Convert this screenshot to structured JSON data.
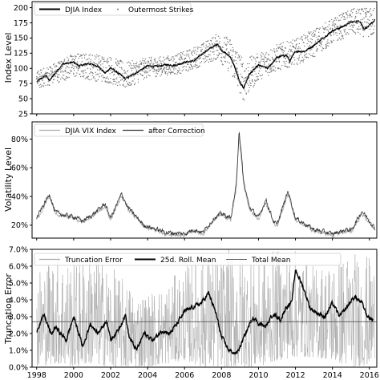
{
  "chart_data": [
    {
      "type": "line",
      "ylabel": "Index Level",
      "ylim": [
        25,
        210
      ],
      "yticks": [
        "25",
        "50",
        "75",
        "100",
        "125",
        "150",
        "175",
        "200"
      ],
      "ytick_values": [
        25,
        50,
        75,
        100,
        125,
        150,
        175,
        200
      ],
      "xlim": [
        1997.75,
        2016.4
      ],
      "legend": {
        "position": "top-left",
        "entries": [
          "DJIA Index",
          "Outermost Strikes"
        ]
      },
      "series": [
        {
          "name": "DJIA Index",
          "color": "#000000",
          "x": [
            1998.0,
            1998.5,
            1998.7,
            1999.0,
            1999.4,
            2000.0,
            2000.3,
            2000.8,
            2001.3,
            2001.7,
            2002.0,
            2002.5,
            2002.8,
            2003.0,
            2003.5,
            2004.0,
            2004.5,
            2005.0,
            2005.5,
            2006.0,
            2006.5,
            2007.0,
            2007.5,
            2007.8,
            2008.0,
            2008.5,
            2008.8,
            2009.0,
            2009.2,
            2009.5,
            2010.0,
            2010.5,
            2011.0,
            2011.5,
            2011.7,
            2012.0,
            2012.5,
            2013.0,
            2013.5,
            2014.0,
            2014.5,
            2015.0,
            2015.5,
            2015.7,
            2016.0,
            2016.3
          ],
          "y": [
            78,
            88,
            80,
            92,
            107,
            110,
            104,
            108,
            104,
            92,
            101,
            90,
            83,
            86,
            95,
            104,
            103,
            106,
            105,
            110,
            112,
            125,
            135,
            140,
            130,
            118,
            95,
            75,
            68,
            90,
            105,
            100,
            118,
            122,
            112,
            128,
            128,
            138,
            150,
            162,
            168,
            176,
            178,
            165,
            170,
            180
          ]
        },
        {
          "name": "Outermost Strikes",
          "color": "#777777",
          "style": "dotted band",
          "x": [
            1998.0,
            1999.0,
            2000.0,
            2001.0,
            2002.0,
            2002.8,
            2004.0,
            2005.0,
            2006.0,
            2007.0,
            2007.8,
            2008.5,
            2009.2,
            2010.0,
            2011.0,
            2012.0,
            2013.0,
            2014.0,
            2015.0,
            2016.3
          ],
          "y_low": [
            65,
            75,
            85,
            80,
            75,
            65,
            85,
            88,
            92,
            105,
            115,
            90,
            45,
            80,
            95,
            105,
            118,
            140,
            155,
            150
          ],
          "y_high": [
            95,
            110,
            125,
            125,
            120,
            110,
            118,
            120,
            128,
            142,
            158,
            150,
            115,
            125,
            140,
            148,
            165,
            182,
            198,
            200
          ]
        }
      ]
    },
    {
      "type": "line",
      "ylabel": "Volatility Level",
      "ylim": [
        0.11,
        0.92
      ],
      "yticks": [
        "20%",
        "40%",
        "60%",
        "80%"
      ],
      "ytick_values": [
        0.2,
        0.4,
        0.6,
        0.8
      ],
      "xlim": [
        1997.75,
        2016.4
      ],
      "legend": {
        "position": "top-left",
        "entries": [
          "DJIA VIX Index",
          "after Correction"
        ]
      },
      "series": [
        {
          "name": "DJIA VIX Index",
          "color": "#aaaaaa",
          "x": [
            1998.0,
            1998.7,
            1999.0,
            1999.5,
            2000.0,
            2000.5,
            2001.0,
            2001.7,
            2002.0,
            2002.6,
            2002.9,
            2003.3,
            2003.8,
            2004.5,
            2005.0,
            2006.0,
            2006.5,
            2007.0,
            2007.6,
            2008.0,
            2008.5,
            2008.8,
            2008.95,
            2009.2,
            2009.5,
            2010.0,
            2010.4,
            2010.8,
            2011.0,
            2011.6,
            2012.0,
            2012.5,
            2013.0,
            2014.0,
            2014.8,
            2015.0,
            2015.6,
            2016.0,
            2016.3
          ],
          "y": [
            0.24,
            0.4,
            0.28,
            0.26,
            0.25,
            0.22,
            0.26,
            0.33,
            0.24,
            0.4,
            0.32,
            0.26,
            0.19,
            0.16,
            0.14,
            0.13,
            0.16,
            0.14,
            0.24,
            0.27,
            0.24,
            0.45,
            0.83,
            0.48,
            0.32,
            0.24,
            0.36,
            0.22,
            0.19,
            0.42,
            0.24,
            0.2,
            0.16,
            0.13,
            0.16,
            0.15,
            0.28,
            0.22,
            0.17
          ]
        },
        {
          "name": "after Correction",
          "color": "#333333",
          "x": [
            1998.0,
            1998.7,
            1999.0,
            1999.5,
            2000.0,
            2000.5,
            2001.0,
            2001.7,
            2002.0,
            2002.6,
            2002.9,
            2003.3,
            2003.8,
            2004.5,
            2005.0,
            2006.0,
            2006.5,
            2007.0,
            2007.6,
            2008.0,
            2008.5,
            2008.8,
            2008.95,
            2009.2,
            2009.5,
            2010.0,
            2010.4,
            2010.8,
            2011.0,
            2011.6,
            2012.0,
            2012.5,
            2013.0,
            2014.0,
            2014.8,
            2015.0,
            2015.6,
            2016.0,
            2016.3
          ],
          "y": [
            0.25,
            0.42,
            0.29,
            0.27,
            0.26,
            0.23,
            0.27,
            0.35,
            0.25,
            0.42,
            0.33,
            0.27,
            0.2,
            0.17,
            0.15,
            0.14,
            0.17,
            0.15,
            0.25,
            0.28,
            0.25,
            0.48,
            0.87,
            0.5,
            0.33,
            0.25,
            0.38,
            0.23,
            0.2,
            0.44,
            0.25,
            0.21,
            0.17,
            0.14,
            0.17,
            0.16,
            0.3,
            0.23,
            0.18
          ]
        }
      ]
    },
    {
      "type": "line",
      "ylabel": "Truncation Error",
      "ylim": [
        0,
        0.07
      ],
      "yticks": [
        "0.0%",
        "1.0%",
        "2.0%",
        "3.0%",
        "4.0%",
        "5.0%",
        "6.0%",
        "7.0%"
      ],
      "ytick_values": [
        0,
        0.01,
        0.02,
        0.03,
        0.04,
        0.05,
        0.06,
        0.07
      ],
      "xlim": [
        1997.75,
        2016.4
      ],
      "xticks": [
        "1998",
        "2000",
        "2002",
        "2004",
        "2006",
        "2008",
        "2010",
        "2012",
        "2014",
        "2016"
      ],
      "xtick_values": [
        1998,
        2000,
        2002,
        2004,
        2006,
        2008,
        2010,
        2012,
        2014,
        2016
      ],
      "legend": {
        "position": "top",
        "entries": [
          "Truncation Error",
          "25d. Roll. Mean",
          "Total Mean"
        ]
      },
      "series": [
        {
          "name": "Truncation Error",
          "color": "#aaaaaa",
          "style": "noisy band",
          "x": [
            1998.0,
            1999.0,
            2000.0,
            2001.0,
            2002.0,
            2003.0,
            2004.0,
            2005.0,
            2006.0,
            2007.0,
            2008.0,
            2009.0,
            2010.0,
            2011.0,
            2012.0,
            2013.0,
            2014.0,
            2015.0,
            2016.3
          ],
          "y_low": [
            0.0,
            0.002,
            0.0,
            0.002,
            0.0,
            0.0,
            0.0,
            0.002,
            0.004,
            0.0,
            0.0,
            0.0,
            0.0,
            0.004,
            0.006,
            0.006,
            0.004,
            0.0,
            0.002
          ],
          "y_high": [
            0.06,
            0.07,
            0.065,
            0.07,
            0.06,
            0.05,
            0.045,
            0.05,
            0.06,
            0.07,
            0.07,
            0.07,
            0.065,
            0.07,
            0.07,
            0.06,
            0.065,
            0.07,
            0.065
          ]
        },
        {
          "name": "25d. Roll. Mean",
          "color": "#000000",
          "x": [
            1998.0,
            1998.4,
            1998.8,
            1999.0,
            1999.6,
            2000.0,
            2000.5,
            2000.9,
            2001.3,
            2001.8,
            2002.0,
            2002.4,
            2002.8,
            2003.0,
            2003.4,
            2003.8,
            2004.3,
            2004.8,
            2005.2,
            2005.6,
            2006.0,
            2006.5,
            2006.9,
            2007.3,
            2007.7,
            2008.0,
            2008.4,
            2008.8,
            2009.0,
            2009.3,
            2009.7,
            2010.0,
            2010.4,
            2010.8,
            2011.2,
            2011.5,
            2011.8,
            2012.0,
            2012.4,
            2012.8,
            2013.2,
            2013.6,
            2014.0,
            2014.4,
            2014.8,
            2015.2,
            2015.6,
            2015.9,
            2016.2
          ],
          "y": [
            0.022,
            0.031,
            0.019,
            0.024,
            0.016,
            0.03,
            0.012,
            0.026,
            0.02,
            0.028,
            0.016,
            0.022,
            0.031,
            0.018,
            0.01,
            0.02,
            0.016,
            0.022,
            0.02,
            0.026,
            0.033,
            0.036,
            0.038,
            0.044,
            0.032,
            0.018,
            0.01,
            0.008,
            0.012,
            0.02,
            0.03,
            0.026,
            0.024,
            0.032,
            0.028,
            0.036,
            0.038,
            0.058,
            0.048,
            0.035,
            0.032,
            0.03,
            0.038,
            0.03,
            0.036,
            0.042,
            0.038,
            0.03,
            0.028
          ]
        },
        {
          "name": "Total Mean",
          "color": "#555555",
          "x": [
            1997.75,
            2016.4
          ],
          "y": [
            0.027,
            0.027
          ]
        }
      ]
    }
  ]
}
